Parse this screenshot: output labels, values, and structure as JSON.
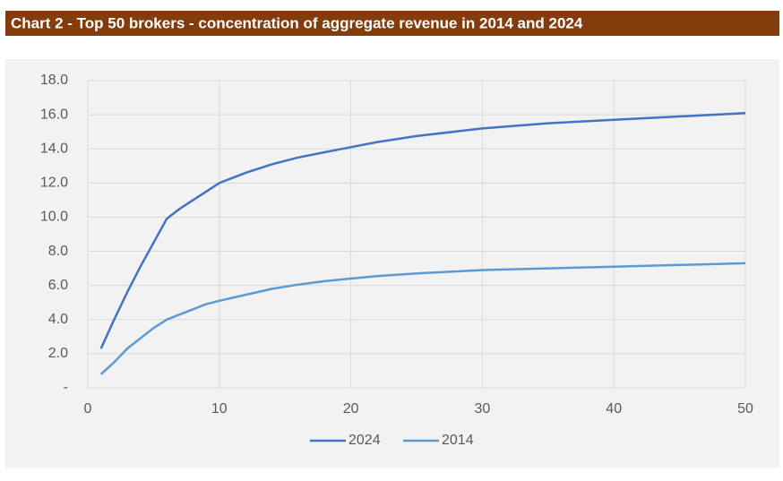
{
  "chart_data": {
    "type": "line",
    "title": "Chart 2 - Top 50 brokers - concentration of aggregate revenue in 2014 and 2024",
    "x": [
      1,
      2,
      3,
      4,
      5,
      6,
      7,
      8,
      9,
      10,
      12,
      14,
      16,
      18,
      20,
      22,
      25,
      30,
      35,
      40,
      45,
      50
    ],
    "series": [
      {
        "name": "2024",
        "color": "#4472c4",
        "values": [
          2.3,
          4.0,
          5.6,
          7.1,
          8.5,
          9.9,
          10.5,
          11.0,
          11.5,
          12.0,
          12.6,
          13.1,
          13.5,
          13.8,
          14.1,
          14.4,
          14.75,
          15.2,
          15.5,
          15.7,
          15.9,
          16.1
        ]
      },
      {
        "name": "2014",
        "color": "#5b9bd5",
        "values": [
          0.8,
          1.5,
          2.3,
          2.9,
          3.5,
          4.0,
          4.3,
          4.6,
          4.9,
          5.1,
          5.45,
          5.8,
          6.05,
          6.25,
          6.4,
          6.55,
          6.7,
          6.9,
          7.0,
          7.1,
          7.2,
          7.3
        ]
      }
    ],
    "xlim": [
      0,
      50
    ],
    "xticks": [
      0,
      10,
      20,
      30,
      40,
      50
    ],
    "ylim": [
      0,
      18
    ],
    "yticks": [
      {
        "value": 0,
        "label": "-"
      },
      {
        "value": 2,
        "label": "2.0"
      },
      {
        "value": 4,
        "label": "4.0"
      },
      {
        "value": 6,
        "label": "6.0"
      },
      {
        "value": 8,
        "label": "8.0"
      },
      {
        "value": 10,
        "label": "10.0"
      },
      {
        "value": 12,
        "label": "12.0"
      },
      {
        "value": 14,
        "label": "14.0"
      },
      {
        "value": 16,
        "label": "16.0"
      },
      {
        "value": 18,
        "label": "18.0"
      }
    ],
    "grid": true,
    "legend": "bottom"
  }
}
